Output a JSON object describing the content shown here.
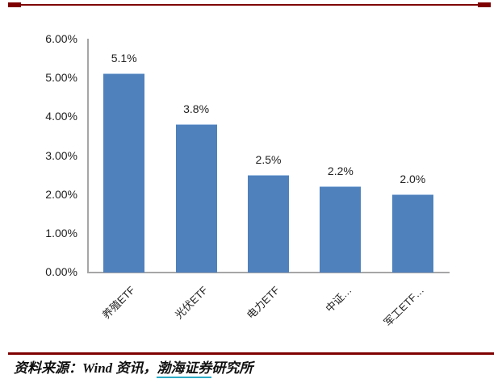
{
  "chart_data": {
    "type": "bar",
    "categories": [
      "养殖ETF",
      "光伏ETF",
      "电力ETF",
      "中证…",
      "军工ETF…"
    ],
    "values": [
      5.1,
      3.8,
      2.5,
      2.2,
      2.0
    ],
    "data_labels": [
      "5.1%",
      "3.8%",
      "2.5%",
      "2.2%",
      "2.0%"
    ],
    "y_ticks": [
      "6.00%",
      "5.00%",
      "4.00%",
      "3.00%",
      "2.00%",
      "1.00%",
      "0.00%"
    ],
    "ylim": [
      0,
      6
    ],
    "title": "",
    "xlabel": "",
    "ylabel": "",
    "grid": false,
    "legend": "none",
    "bar_color": "#4F81BD",
    "bar_border_color": "#A7C4E4",
    "axis_color": "#A6A6A6"
  },
  "decor": {
    "accent_color": "#7F0000",
    "link_underline_color": "#2BAAC6"
  },
  "footer": {
    "source_before": "资料来源：Wind 资讯，",
    "source_link": "渤海证券",
    "source_after": "研究所"
  }
}
